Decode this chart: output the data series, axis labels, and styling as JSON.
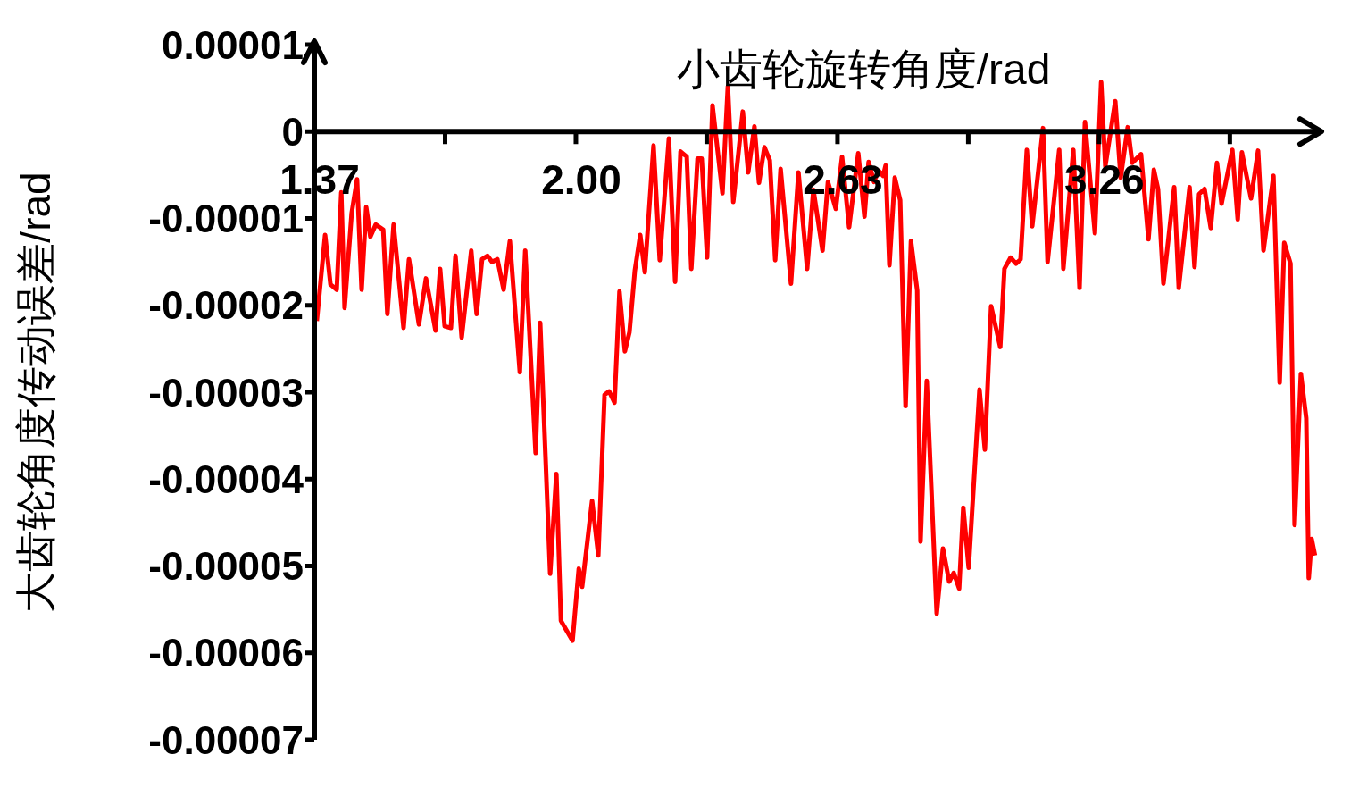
{
  "chart_data": {
    "type": "line",
    "xlabel": "小齿轮旋转角度/rad",
    "ylabel": "大齿轮角度传动误差/rad",
    "x": [
      1.376,
      1.396,
      1.409,
      1.424,
      1.435,
      1.443,
      1.46,
      1.473,
      1.484,
      1.495,
      1.505,
      1.518,
      1.536,
      1.546,
      1.561,
      1.585,
      1.598,
      1.622,
      1.639,
      1.662,
      1.673,
      1.684,
      1.699,
      1.71,
      1.725,
      1.748,
      1.761,
      1.774,
      1.787,
      1.798,
      1.811,
      1.826,
      1.841,
      1.865,
      1.878,
      1.903,
      1.914,
      1.938,
      1.953,
      1.964,
      1.992,
      2.007,
      2.015,
      2.039,
      2.054,
      2.069,
      2.08,
      2.093,
      2.105,
      2.118,
      2.129,
      2.142,
      2.155,
      2.166,
      2.187,
      2.202,
      2.224,
      2.239,
      2.252,
      2.267,
      2.278,
      2.293,
      2.303,
      2.316,
      2.329,
      2.353,
      2.366,
      2.379,
      2.402,
      2.415,
      2.43,
      2.441,
      2.454,
      2.467,
      2.48,
      2.493,
      2.518,
      2.536,
      2.557,
      2.572,
      2.594,
      2.607,
      2.626,
      2.641,
      2.658,
      2.68,
      2.695,
      2.705,
      2.718,
      2.729,
      2.74,
      2.746,
      2.755,
      2.768,
      2.781,
      2.794,
      2.807,
      2.822,
      2.83,
      2.845,
      2.869,
      2.884,
      2.899,
      2.91,
      2.923,
      2.933,
      2.946,
      2.972,
      2.985,
      3.0,
      3.022,
      3.032,
      3.047,
      3.06,
      3.071,
      3.086,
      3.099,
      3.125,
      3.136,
      3.164,
      3.174,
      3.198,
      3.213,
      3.226,
      3.25,
      3.265,
      3.275,
      3.299,
      3.312,
      3.329,
      3.34,
      3.361,
      3.379,
      3.392,
      3.402,
      3.415,
      3.441,
      3.452,
      3.478,
      3.49,
      3.501,
      3.514,
      3.529,
      3.544,
      3.555,
      3.581,
      3.594,
      3.604,
      3.626,
      3.643,
      3.656,
      3.68,
      3.695,
      3.706,
      3.721,
      3.731,
      3.746,
      3.759,
      3.765,
      3.772,
      3.78
    ],
    "series": [
      {
        "color": "#ff0000",
        "values": [
          -2.18e-05,
          -1.19e-05,
          -1.76e-05,
          -1.82e-05,
          -7e-06,
          -2.03e-05,
          -9.4e-06,
          -5.5e-06,
          -1.82e-05,
          -8.7e-06,
          -1.21e-05,
          -1.07e-05,
          -1.13e-05,
          -2.1e-05,
          -1.07e-05,
          -2.26e-05,
          -1.47e-05,
          -2.22e-05,
          -1.69e-05,
          -2.29e-05,
          -1.58e-05,
          -2.24e-05,
          -2.26e-05,
          -1.43e-05,
          -2.37e-05,
          -1.37e-05,
          -2.1e-05,
          -1.47e-05,
          -1.43e-05,
          -1.5e-05,
          -1.47e-05,
          -1.82e-05,
          -1.26e-05,
          -2.77e-05,
          -1.37e-05,
          -3.7e-05,
          -2.2e-05,
          -5.09e-05,
          -3.94e-05,
          -5.63e-05,
          -5.86e-05,
          -5.03e-05,
          -5.24e-05,
          -4.25e-05,
          -4.88e-05,
          -3.03e-05,
          -2.99e-05,
          -3.12e-05,
          -1.84e-05,
          -2.53e-05,
          -2.31e-05,
          -1.6e-05,
          -1.19e-05,
          -1.62e-05,
          -1.6e-06,
          -1.48e-05,
          -8e-07,
          -1.73e-05,
          -2.3e-06,
          -2.9e-06,
          -1.58e-05,
          -3.1e-06,
          -3.1e-06,
          -1.45e-05,
          3e-06,
          -7.1e-06,
          5.2e-06,
          -8.1e-06,
          2.3e-06,
          -4.7e-06,
          6e-07,
          -5.9e-06,
          -1.8e-06,
          -3.3e-06,
          -1.48e-05,
          -4.3e-06,
          -1.75e-05,
          -4.7e-06,
          -1.58e-05,
          -6.7e-06,
          -1.37e-05,
          -5.8e-06,
          -8.9e-06,
          -2.9e-06,
          -1.1e-05,
          -2.5e-06,
          -9.8e-06,
          -3.5e-06,
          -5.8e-06,
          -4.5e-06,
          -5.1e-06,
          -3.9e-06,
          -1.54e-05,
          -5.3e-06,
          -7.9e-06,
          -3.16e-05,
          -1.26e-05,
          -1.83e-05,
          -4.72e-05,
          -2.87e-05,
          -5.55e-05,
          -4.8e-05,
          -5.18e-05,
          -5.08e-05,
          -5.26e-05,
          -4.33e-05,
          -5.02e-05,
          -2.97e-05,
          -3.66e-05,
          -2.01e-05,
          -2.48e-05,
          -1.58e-05,
          -1.45e-05,
          -1.52e-05,
          -1.47e-05,
          -2.1e-06,
          -1.09e-05,
          4e-07,
          -1.5e-05,
          -2.1e-06,
          -1.58e-05,
          -2.1e-06,
          -1.8e-05,
          1.1e-06,
          -1.17e-05,
          5.7e-06,
          -4e-06,
          3.5e-06,
          -5.3e-06,
          5e-07,
          -3.6e-06,
          -2.6e-06,
          -1.24e-05,
          -4.4e-06,
          -6.6e-06,
          -1.75e-05,
          -6.4e-06,
          -1.8e-05,
          -6.4e-06,
          -1.56e-05,
          -7.2e-06,
          -6.6e-06,
          -1.11e-05,
          -3.6e-06,
          -8.3e-06,
          -2.1e-06,
          -1.01e-05,
          -2.4e-06,
          -7.7e-06,
          -2.2e-06,
          -1.37e-05,
          -5.1e-06,
          -2.89e-05,
          -1.28e-05,
          -1.52e-05,
          -4.53e-05,
          -2.79e-05,
          -3.3e-05,
          -5.14e-05,
          -4.69e-05,
          -4.88e-05
        ]
      }
    ],
    "xlim": [
      1.37,
      3.8
    ],
    "xticks": [
      1.37,
      {
        "value": 1.685,
        "label": null
      },
      {
        "value": 2.0,
        "label": "2.00"
      },
      {
        "value": 2.315,
        "label": null
      },
      2.63,
      {
        "value": 2.945,
        "label": null
      },
      3.26,
      {
        "value": 3.575,
        "label": null
      }
    ],
    "ylim": [
      -7e-05,
      1e-05
    ],
    "yticks": [
      {
        "value": 1e-05,
        "label": "0.00001"
      },
      0,
      {
        "value": -1e-05,
        "label": "-0.00001"
      },
      {
        "value": -2e-05,
        "label": "-0.00002"
      },
      {
        "value": -3e-05,
        "label": "-0.00003"
      },
      {
        "value": -4e-05,
        "label": "-0.00004"
      },
      {
        "value": -5e-05,
        "label": "-0.00005"
      },
      {
        "value": -6e-05,
        "label": "-0.00006"
      },
      {
        "value": -7e-05,
        "label": "-0.00007"
      }
    ],
    "marker": "none",
    "line_style": "solid"
  }
}
